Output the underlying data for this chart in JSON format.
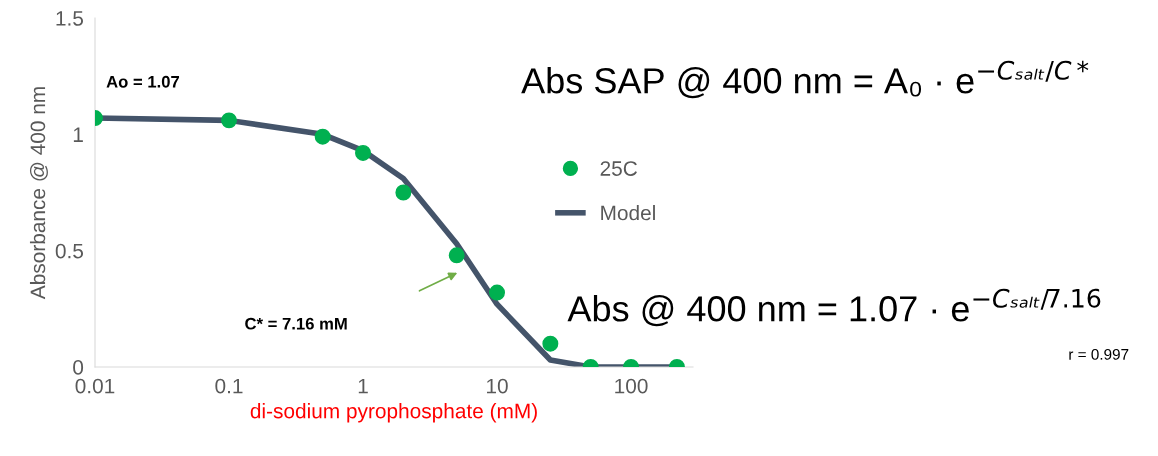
{
  "chart_data": {
    "type": "scatter",
    "xlabel": "di-sodium pyrophosphate (mM)",
    "ylabel": "Absorbance @ 400 nm",
    "log": "x",
    "xlim": [
      0.01,
      290
    ],
    "xticks": [
      0.01,
      0.1,
      1,
      10,
      100
    ],
    "ylim": [
      0,
      1.5
    ],
    "yticks": [
      0,
      0.5,
      1,
      1.5
    ],
    "grid": false,
    "legend": "right",
    "x": [
      0.01,
      0.1,
      0.5,
      1,
      2,
      5,
      10,
      25,
      50,
      100,
      220
    ],
    "series": [
      {
        "name": "25C",
        "color": "#00b050",
        "values": [
          1.07,
          1.06,
          0.99,
          0.92,
          0.75,
          0.48,
          0.32,
          0.1,
          0,
          0,
          0
        ]
      },
      {
        "name": "Model",
        "type": "line",
        "color": "#44546a",
        "values": [
          1.07,
          1.06,
          1.0,
          0.93,
          0.81,
          0.53,
          0.27,
          0.03,
          0,
          0,
          0
        ]
      }
    ],
    "annotations": [
      {
        "text": "Ao = 1.07",
        "x": 0.01,
        "y": 1.07
      },
      "C* = 7.16 mM",
      "Abs SAP @ 400 nm = A₀ · e$^{−Cₛₐₗₜ/C*}$",
      "Abs @ 400 nm = 1.07 · e$^{−Cₛₐₗₜ/7.16}$",
      "r = 0.997"
    ]
  }
}
